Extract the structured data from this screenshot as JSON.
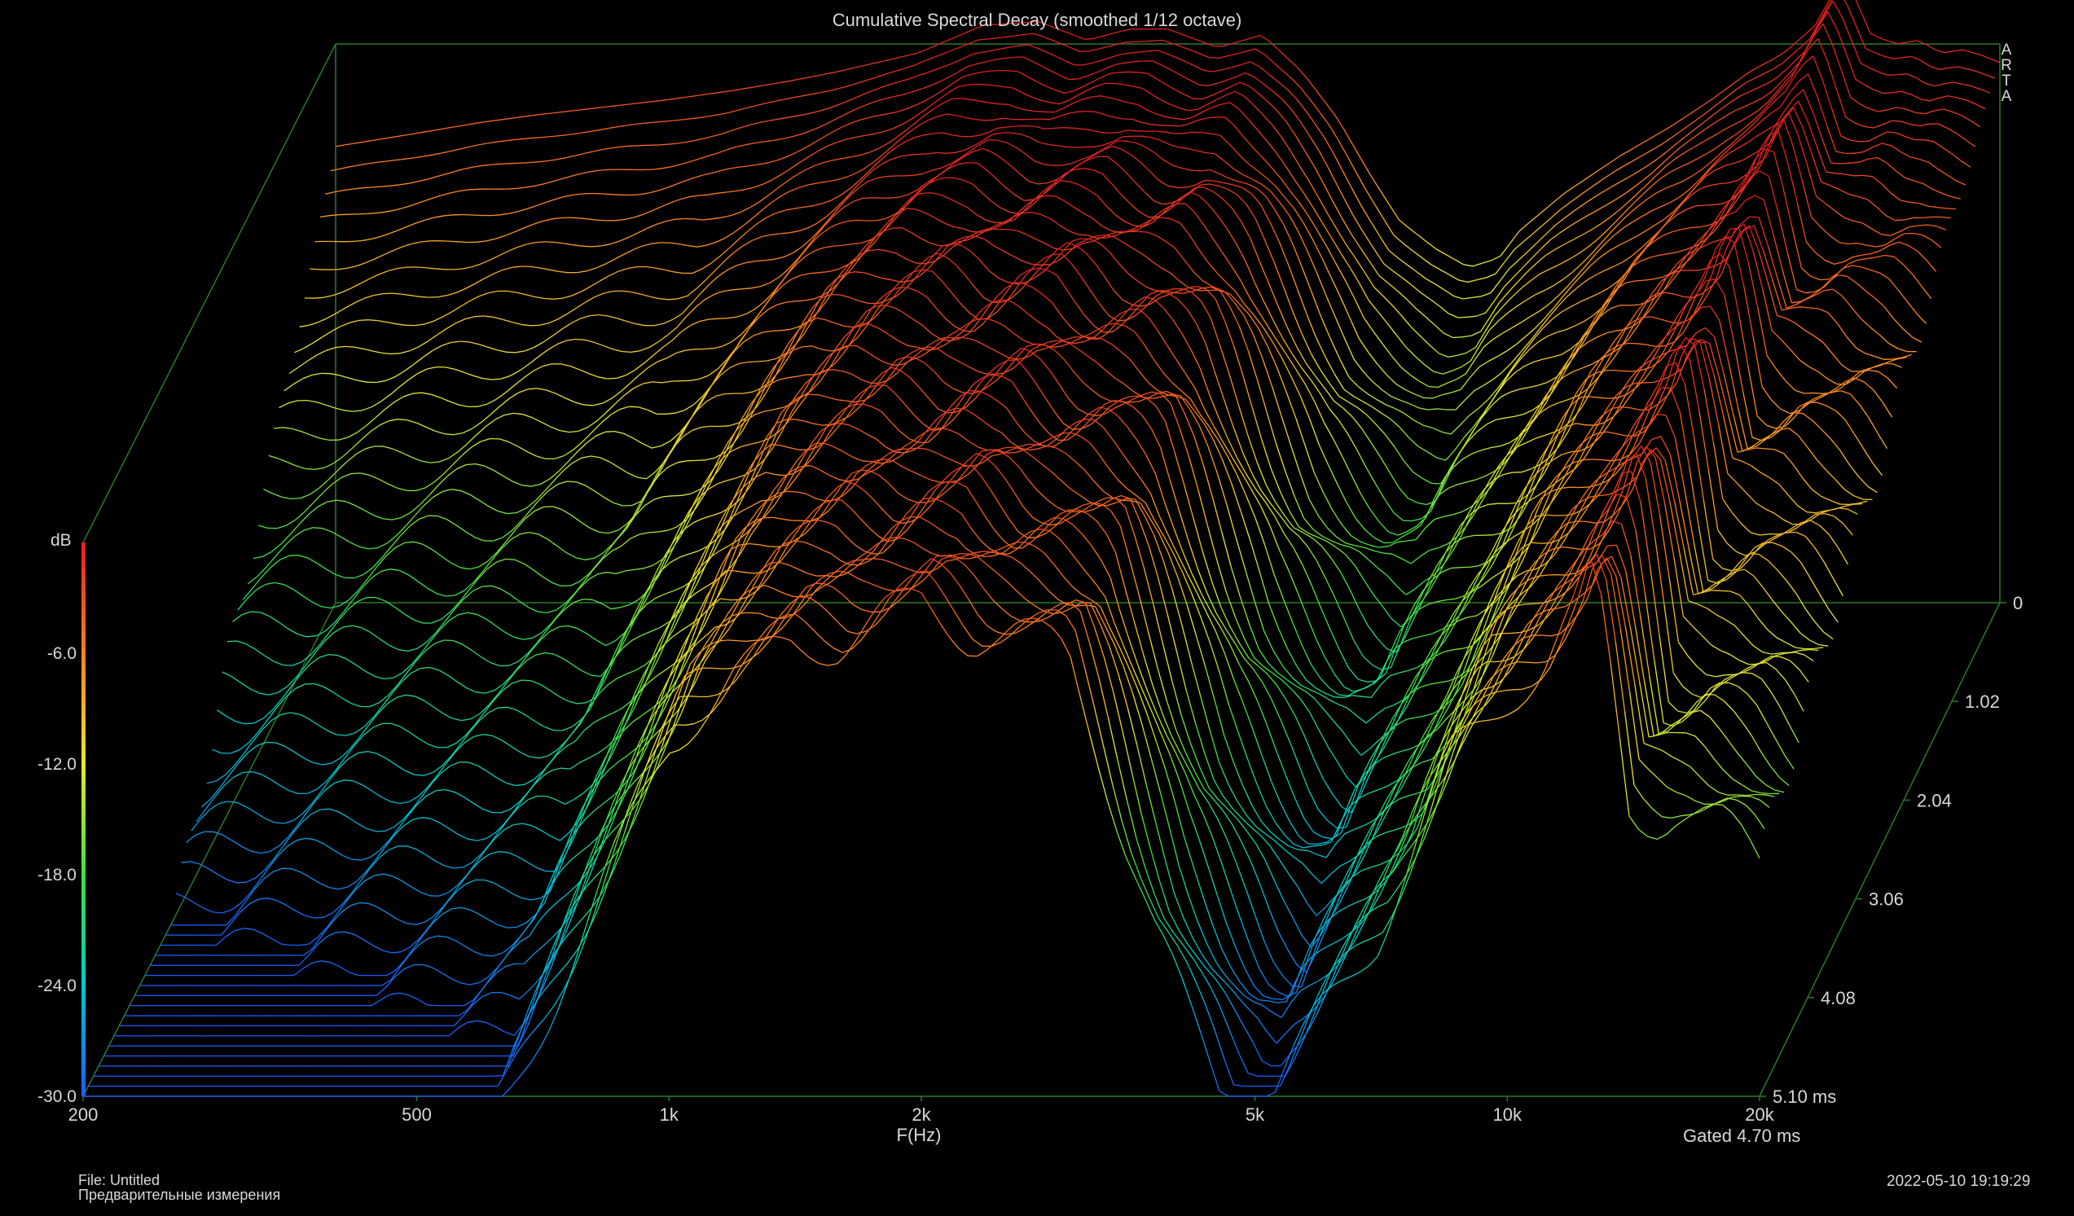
{
  "title": "Cumulative Spectral Decay (smoothed 1/12 octave)",
  "watermark": "ARTA",
  "file_label": "File: Untitled",
  "file_note": "Предварительные измерения",
  "timestamp": "2022-05-10  19:19:29",
  "gated_label": "Gated 4.70 ms",
  "colors": {
    "background": "#000000",
    "frame": "#2a7a2a",
    "text": "#d8d8d8"
  },
  "chart_data": {
    "type": "waterfall",
    "title": "Cumulative Spectral Decay (smoothed 1/12 octave)",
    "xlabel": "F(Hz)",
    "ylabel": "dB",
    "zlabel": "ms",
    "x_scale": "log",
    "xlim": [
      200,
      20000
    ],
    "ylim": [
      -30,
      0
    ],
    "zlim": [
      0,
      5.1
    ],
    "x_ticks": [
      200,
      500,
      1000,
      2000,
      5000,
      10000,
      20000
    ],
    "x_tick_labels": [
      "200",
      "500",
      "1k",
      "2k",
      "5k",
      "10k",
      "20k"
    ],
    "y_ticks": [
      -6,
      -12,
      -18,
      -24,
      -30
    ],
    "y_tick_labels": [
      "-6.0",
      "-12.0",
      "-18.0",
      "-24.0",
      "-30.0"
    ],
    "z_ticks": [
      0,
      1.02,
      2.04,
      3.06,
      4.08,
      5.1
    ],
    "z_tick_labels": [
      "0",
      "1.02",
      "2.04",
      "3.06",
      "4.08",
      "5.10 ms"
    ],
    "colormap": [
      "#1a5cff",
      "#00c8c8",
      "#40e040",
      "#e8e830",
      "#ff8020",
      "#e02020"
    ],
    "slice_count": 50,
    "initial_response": {
      "freq_hz": [
        200,
        250,
        300,
        350,
        400,
        500,
        600,
        700,
        800,
        1000,
        1200,
        1400,
        1600,
        1800,
        2000,
        2300,
        2600,
        2900,
        3200,
        3500,
        3800,
        4200,
        4600,
        5000,
        5300,
        6000,
        7000,
        8000,
        9000,
        10000,
        11000,
        12000,
        13000,
        14000,
        15000,
        16000,
        17000,
        18000,
        19000,
        20000
      ],
      "level_db": [
        -5.5,
        -4.8,
        -4.2,
        -3.8,
        -3.5,
        -3.0,
        -2.5,
        -2.0,
        -1.5,
        -0.5,
        1.0,
        1.2,
        0.2,
        0.8,
        0.8,
        -0.2,
        0.5,
        -1.5,
        -4.0,
        -7.0,
        -9.5,
        -11.0,
        -12.0,
        -11.5,
        -10.0,
        -8.0,
        -6.0,
        -4.5,
        -3.0,
        -1.5,
        -0.5,
        1.0,
        3.8,
        0.5,
        0.0,
        0.2,
        -0.5,
        -0.3,
        -0.6,
        -1.0
      ]
    },
    "decay_db_per_ms": [
      {
        "freq_hz": 200,
        "rate": 7.5
      },
      {
        "freq_hz": 600,
        "rate": 6.0
      },
      {
        "freq_hz": 1000,
        "rate": 2.0
      },
      {
        "freq_hz": 1400,
        "rate": 1.3
      },
      {
        "freq_hz": 2000,
        "rate": 0.8
      },
      {
        "freq_hz": 2600,
        "rate": 1.1
      },
      {
        "freq_hz": 3000,
        "rate": 0.7
      },
      {
        "freq_hz": 3500,
        "rate": 1.8
      },
      {
        "freq_hz": 5000,
        "rate": 4.0
      },
      {
        "freq_hz": 7000,
        "rate": 3.0
      },
      {
        "freq_hz": 8500,
        "rate": 1.6
      },
      {
        "freq_hz": 11000,
        "rate": 1.2
      },
      {
        "freq_hz": 12500,
        "rate": 0.8
      },
      {
        "freq_hz": 14000,
        "rate": 3.0
      },
      {
        "freq_hz": 17000,
        "rate": 2.8
      },
      {
        "freq_hz": 20000,
        "rate": 3.2
      }
    ]
  }
}
